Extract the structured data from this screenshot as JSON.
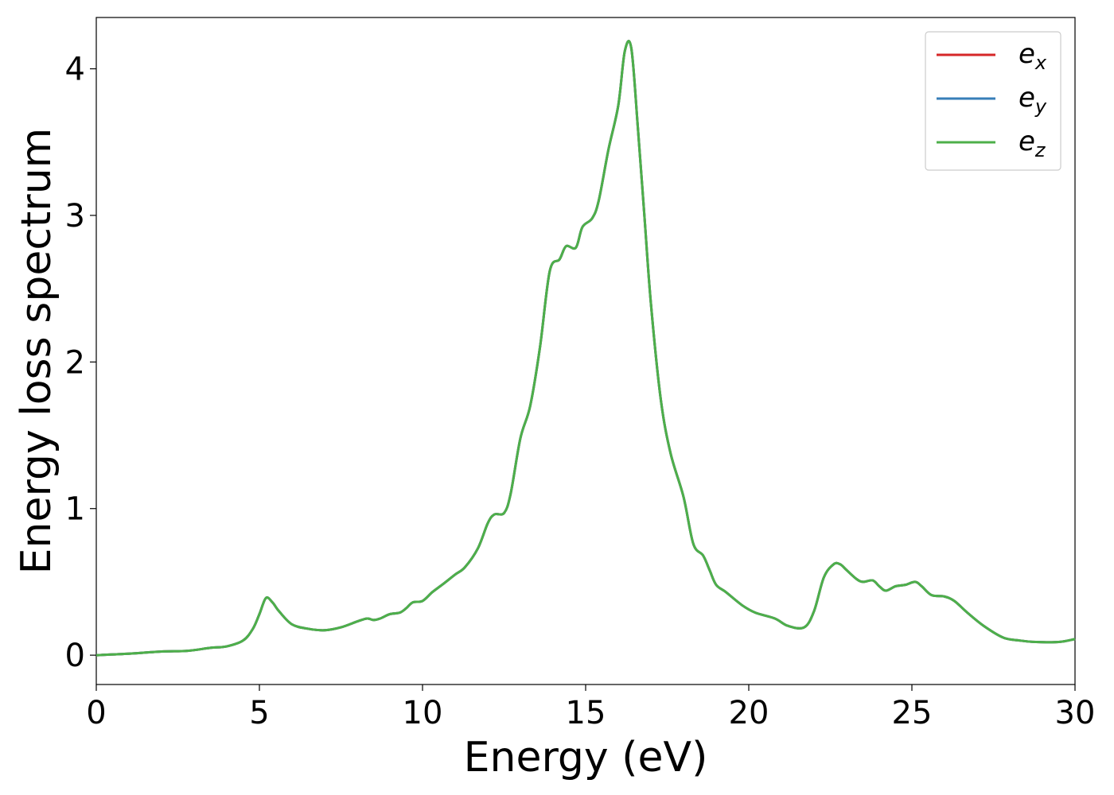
{
  "chart_data": {
    "type": "line",
    "title": "",
    "xlabel": "Energy (eV)",
    "ylabel": "Energy loss spectrum",
    "xlim": [
      0,
      30
    ],
    "ylim": [
      -0.2,
      4.35
    ],
    "xticks": [
      0,
      5,
      10,
      15,
      20,
      25,
      30
    ],
    "xtick_labels": [
      "0",
      "5",
      "10",
      "15",
      "20",
      "25",
      "30"
    ],
    "yticks": [
      0,
      1,
      2,
      3,
      4
    ],
    "ytick_labels": [
      "0",
      "1",
      "2",
      "3",
      "4"
    ],
    "grid": false,
    "legend_position": "top-right",
    "x": [
      0,
      1,
      2,
      2.8,
      3.5,
      4.0,
      4.5,
      4.8,
      5.0,
      5.2,
      5.4,
      5.6,
      6.0,
      6.5,
      7.0,
      7.5,
      8.0,
      8.3,
      8.5,
      8.7,
      9.0,
      9.3,
      9.5,
      9.7,
      10.0,
      10.3,
      10.6,
      11.0,
      11.3,
      11.7,
      12.0,
      12.2,
      12.5,
      12.7,
      13.0,
      13.3,
      13.6,
      13.9,
      14.2,
      14.4,
      14.7,
      14.9,
      15.2,
      15.4,
      15.7,
      16.0,
      16.2,
      16.4,
      16.6,
      16.8,
      17.0,
      17.3,
      17.6,
      18.0,
      18.3,
      18.6,
      18.8,
      19.0,
      19.3,
      19.8,
      20.2,
      20.8,
      21.2,
      21.7,
      22.0,
      22.3,
      22.6,
      22.8,
      23.0,
      23.3,
      23.5,
      23.8,
      24.0,
      24.2,
      24.5,
      24.8,
      25.1,
      25.3,
      25.6,
      26.0,
      26.3,
      26.7,
      27.2,
      27.8,
      28.3,
      28.8,
      29.5,
      30.0
    ],
    "series": [
      {
        "name": "e_x",
        "color": "#d62728",
        "values": [
          0.0,
          0.01,
          0.025,
          0.03,
          0.05,
          0.06,
          0.1,
          0.18,
          0.28,
          0.39,
          0.36,
          0.3,
          0.21,
          0.18,
          0.17,
          0.19,
          0.23,
          0.25,
          0.24,
          0.25,
          0.28,
          0.29,
          0.32,
          0.36,
          0.37,
          0.43,
          0.48,
          0.55,
          0.6,
          0.73,
          0.9,
          0.96,
          0.97,
          1.1,
          1.48,
          1.7,
          2.1,
          2.62,
          2.7,
          2.79,
          2.78,
          2.92,
          2.98,
          3.1,
          3.45,
          3.75,
          4.12,
          4.14,
          3.6,
          3.0,
          2.4,
          1.75,
          1.38,
          1.08,
          0.76,
          0.68,
          0.58,
          0.48,
          0.43,
          0.34,
          0.29,
          0.25,
          0.2,
          0.19,
          0.3,
          0.53,
          0.62,
          0.62,
          0.58,
          0.52,
          0.5,
          0.51,
          0.47,
          0.44,
          0.47,
          0.48,
          0.5,
          0.47,
          0.41,
          0.4,
          0.37,
          0.29,
          0.2,
          0.12,
          0.1,
          0.09,
          0.09,
          0.11
        ]
      },
      {
        "name": "e_y",
        "color": "#377eb8",
        "values": [
          0.0,
          0.01,
          0.025,
          0.03,
          0.05,
          0.06,
          0.1,
          0.18,
          0.28,
          0.39,
          0.36,
          0.3,
          0.21,
          0.18,
          0.17,
          0.19,
          0.23,
          0.25,
          0.24,
          0.25,
          0.28,
          0.29,
          0.32,
          0.36,
          0.37,
          0.43,
          0.48,
          0.55,
          0.6,
          0.73,
          0.9,
          0.96,
          0.97,
          1.1,
          1.48,
          1.7,
          2.1,
          2.62,
          2.7,
          2.79,
          2.78,
          2.92,
          2.98,
          3.1,
          3.45,
          3.75,
          4.12,
          4.14,
          3.6,
          3.0,
          2.4,
          1.75,
          1.38,
          1.08,
          0.76,
          0.68,
          0.58,
          0.48,
          0.43,
          0.34,
          0.29,
          0.25,
          0.2,
          0.19,
          0.3,
          0.53,
          0.62,
          0.62,
          0.58,
          0.52,
          0.5,
          0.51,
          0.47,
          0.44,
          0.47,
          0.48,
          0.5,
          0.47,
          0.41,
          0.4,
          0.37,
          0.29,
          0.2,
          0.12,
          0.1,
          0.09,
          0.09,
          0.11
        ]
      },
      {
        "name": "e_z",
        "color": "#4daf4a",
        "values": [
          0.0,
          0.01,
          0.025,
          0.03,
          0.05,
          0.06,
          0.1,
          0.18,
          0.28,
          0.39,
          0.36,
          0.3,
          0.21,
          0.18,
          0.17,
          0.19,
          0.23,
          0.25,
          0.24,
          0.25,
          0.28,
          0.29,
          0.32,
          0.36,
          0.37,
          0.43,
          0.48,
          0.55,
          0.6,
          0.73,
          0.9,
          0.96,
          0.97,
          1.1,
          1.48,
          1.7,
          2.1,
          2.62,
          2.7,
          2.79,
          2.78,
          2.92,
          2.98,
          3.1,
          3.45,
          3.75,
          4.12,
          4.14,
          3.6,
          3.0,
          2.4,
          1.75,
          1.38,
          1.08,
          0.76,
          0.68,
          0.58,
          0.48,
          0.43,
          0.34,
          0.29,
          0.25,
          0.2,
          0.19,
          0.3,
          0.53,
          0.62,
          0.62,
          0.58,
          0.52,
          0.5,
          0.51,
          0.47,
          0.44,
          0.47,
          0.48,
          0.5,
          0.47,
          0.41,
          0.4,
          0.37,
          0.29,
          0.2,
          0.12,
          0.1,
          0.09,
          0.09,
          0.11
        ]
      }
    ],
    "legend": [
      {
        "base": "e",
        "sub": "x"
      },
      {
        "base": "e",
        "sub": "y"
      },
      {
        "base": "e",
        "sub": "z"
      }
    ]
  }
}
